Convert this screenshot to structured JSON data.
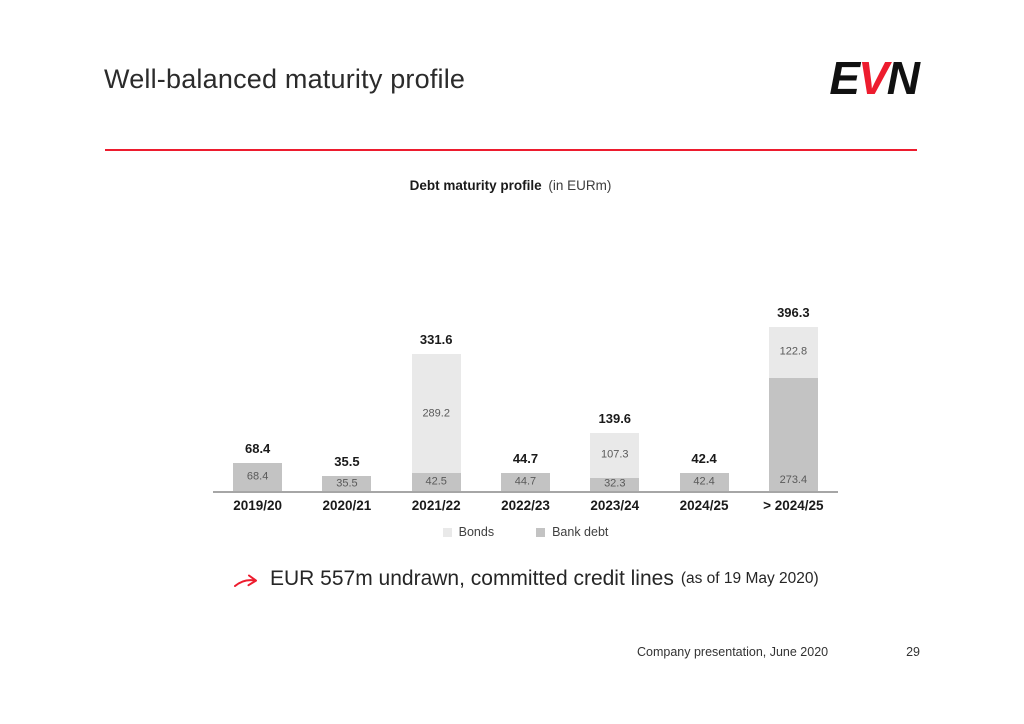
{
  "slide": {
    "title": "Well-balanced maturity profile",
    "logo": {
      "e": "E",
      "v": "V",
      "n": "N"
    },
    "bullet": {
      "main": "EUR 557m undrawn, committed credit lines",
      "suffix": "(as of 19 May 2020)"
    },
    "footer": {
      "left": "Company presentation, June 2020",
      "page": "29"
    }
  },
  "colors": {
    "accent_red": "#ed1c2e",
    "bonds": "#e9e9e9",
    "bank_debt": "#c3c3c3",
    "inner_label": "#595959",
    "axis_line": "#a6a6a6"
  },
  "chart_data": {
    "type": "bar",
    "stacked": true,
    "title": "Debt maturity profile",
    "unit_label": "(in EURm)",
    "categories": [
      "2019/20",
      "2020/21",
      "2021/22",
      "2022/23",
      "2023/24",
      "2024/25",
      "> 2024/25"
    ],
    "series": [
      {
        "name": "Bank debt",
        "color_key": "bank_debt",
        "values": [
          68.4,
          35.5,
          42.5,
          44.7,
          32.3,
          42.4,
          273.4
        ],
        "label_positions": [
          "center",
          "center",
          "center",
          "center",
          "center",
          "center",
          "bottom"
        ]
      },
      {
        "name": "Bonds",
        "color_key": "bonds",
        "values": [
          0,
          0,
          289.2,
          0,
          107.3,
          0,
          122.8
        ],
        "label_positions": [
          "center",
          "center",
          "center",
          "center",
          "center",
          "center",
          "center"
        ]
      }
    ],
    "totals": [
      68.4,
      35.5,
      331.6,
      44.7,
      139.6,
      42.4,
      396.3
    ],
    "legend": [
      "Bonds",
      "Bank debt"
    ],
    "legend_position": "bottom-center",
    "y_axis_visible": false,
    "gridlines": false
  }
}
